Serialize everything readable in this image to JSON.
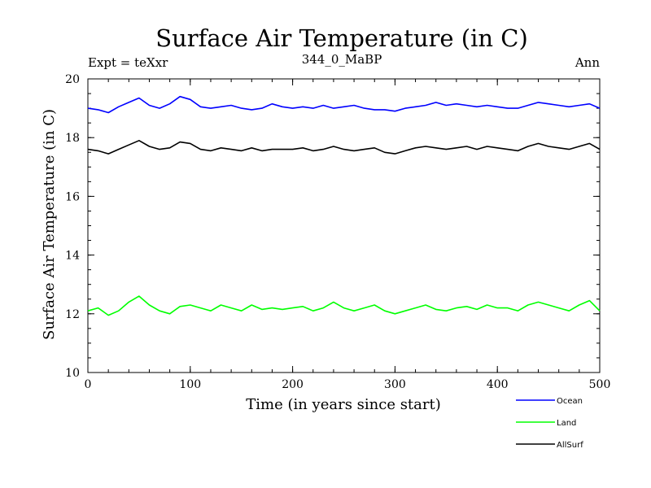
{
  "chart_data": {
    "type": "line",
    "title": "Surface Air Temperature (in C)",
    "subtitle_left": "Expt = teXxr",
    "subtitle_center": "344_0_MaBP",
    "subtitle_right": "Ann",
    "xlabel": "Time (in years since start)",
    "ylabel": "Surface Air Temperature (in C)",
    "xlim": [
      0,
      500
    ],
    "ylim": [
      10,
      20
    ],
    "xticks": [
      0,
      100,
      200,
      300,
      400,
      500
    ],
    "yticks": [
      10,
      12,
      14,
      16,
      18,
      20
    ],
    "x": [
      0,
      10,
      20,
      30,
      40,
      50,
      60,
      70,
      80,
      90,
      100,
      110,
      120,
      130,
      140,
      150,
      160,
      170,
      180,
      190,
      200,
      210,
      220,
      230,
      240,
      250,
      260,
      270,
      280,
      290,
      300,
      310,
      320,
      330,
      340,
      350,
      360,
      370,
      380,
      390,
      400,
      410,
      420,
      430,
      440,
      450,
      460,
      470,
      480,
      490,
      500
    ],
    "series": [
      {
        "name": "Ocean",
        "color": "#0000ff",
        "values": [
          19.0,
          18.95,
          18.85,
          19.05,
          19.2,
          19.35,
          19.1,
          19.0,
          19.15,
          19.4,
          19.3,
          19.05,
          19.0,
          19.05,
          19.1,
          19.0,
          18.95,
          19.0,
          19.15,
          19.05,
          19.0,
          19.05,
          19.0,
          19.1,
          19.0,
          19.05,
          19.1,
          19.0,
          18.95,
          18.95,
          18.9,
          19.0,
          19.05,
          19.1,
          19.2,
          19.1,
          19.15,
          19.1,
          19.05,
          19.1,
          19.05,
          19.0,
          19.0,
          19.1,
          19.2,
          19.15,
          19.1,
          19.05,
          19.1,
          19.15,
          19.0
        ]
      },
      {
        "name": "Land",
        "color": "#00ff00",
        "values": [
          12.1,
          12.2,
          11.95,
          12.1,
          12.4,
          12.6,
          12.3,
          12.1,
          12.0,
          12.25,
          12.3,
          12.2,
          12.1,
          12.3,
          12.2,
          12.1,
          12.3,
          12.15,
          12.2,
          12.15,
          12.2,
          12.25,
          12.1,
          12.2,
          12.4,
          12.2,
          12.1,
          12.2,
          12.3,
          12.1,
          12.0,
          12.1,
          12.2,
          12.3,
          12.15,
          12.1,
          12.2,
          12.25,
          12.15,
          12.3,
          12.2,
          12.2,
          12.1,
          12.3,
          12.4,
          12.3,
          12.2,
          12.1,
          12.3,
          12.45,
          12.1
        ]
      },
      {
        "name": "AllSurf",
        "color": "#000000",
        "values": [
          17.6,
          17.55,
          17.45,
          17.6,
          17.75,
          17.9,
          17.7,
          17.6,
          17.65,
          17.85,
          17.8,
          17.6,
          17.55,
          17.65,
          17.6,
          17.55,
          17.65,
          17.55,
          17.6,
          17.6,
          17.6,
          17.65,
          17.55,
          17.6,
          17.7,
          17.6,
          17.55,
          17.6,
          17.65,
          17.5,
          17.45,
          17.55,
          17.65,
          17.7,
          17.65,
          17.6,
          17.65,
          17.7,
          17.6,
          17.7,
          17.65,
          17.6,
          17.55,
          17.7,
          17.8,
          17.7,
          17.65,
          17.6,
          17.7,
          17.8,
          17.6
        ]
      }
    ],
    "legend_position": "bottom-right"
  }
}
